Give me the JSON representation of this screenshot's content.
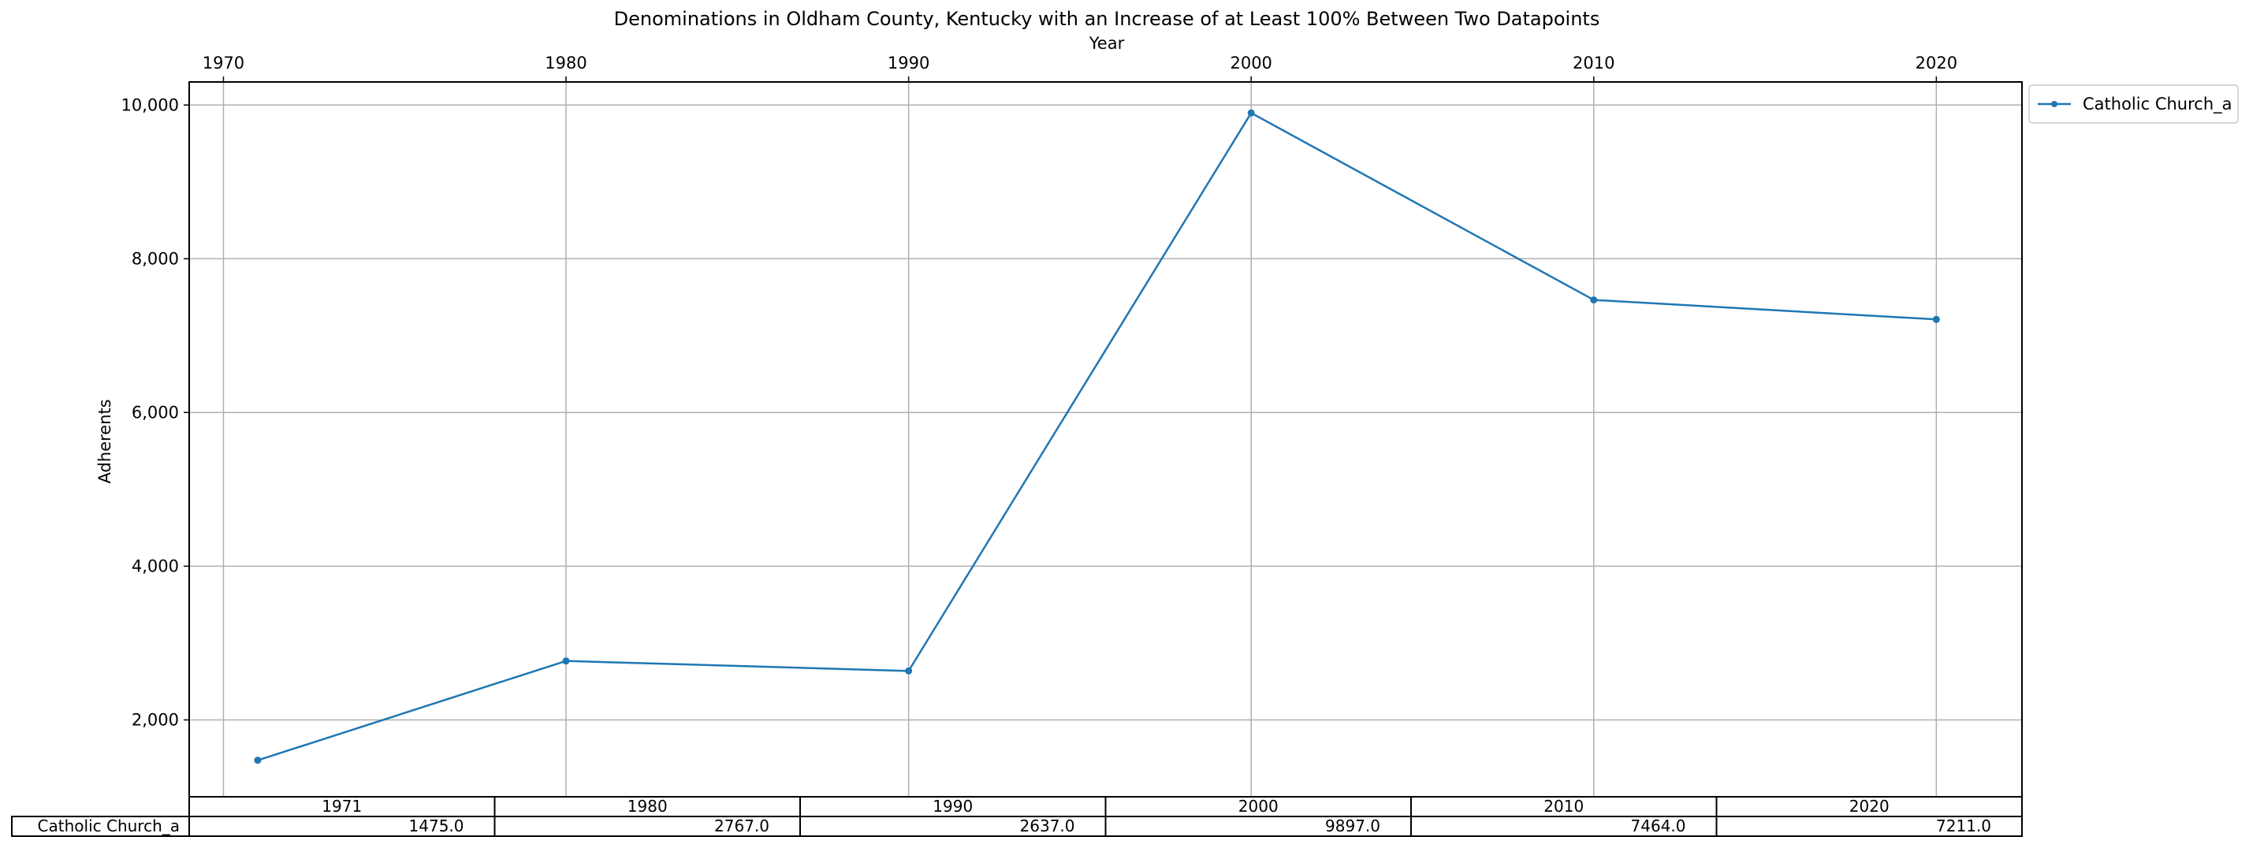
{
  "chart_data": {
    "type": "line",
    "title": "Denominations in Oldham County, Kentucky with an Increase of at Least 100% Between Two Datapoints",
    "xlabel": "Year",
    "ylabel": "Adherents",
    "x": [
      1971,
      1980,
      1990,
      2000,
      2010,
      2020
    ],
    "x_ticks": [
      1970,
      1980,
      1990,
      2000,
      2010,
      2020
    ],
    "x_tick_labels": [
      "1970",
      "1980",
      "1990",
      "2000",
      "2010",
      "2020"
    ],
    "x_axis_position": "top",
    "xlim": [
      1969,
      2022.5
    ],
    "y_ticks": [
      2000,
      4000,
      6000,
      8000,
      10000
    ],
    "y_tick_labels": [
      "2,000",
      "4,000",
      "6,000",
      "8,000",
      "10,000"
    ],
    "ylim": [
      1000,
      10300
    ],
    "grid": true,
    "legend": "outside-top-right",
    "series": [
      {
        "name": "Catholic Church_a",
        "color": "#1f77b4",
        "marker": "point",
        "values": [
          1475,
          2767,
          2637,
          9897,
          7464,
          7211
        ]
      }
    ],
    "table": {
      "columns": [
        "1971",
        "1980",
        "1990",
        "2000",
        "2010",
        "2020"
      ],
      "row_label": "Catholic Church_a",
      "cells": [
        "1475.0",
        "2767.0",
        "2637.0",
        "9897.0",
        "7464.0",
        "7211.0"
      ]
    }
  }
}
